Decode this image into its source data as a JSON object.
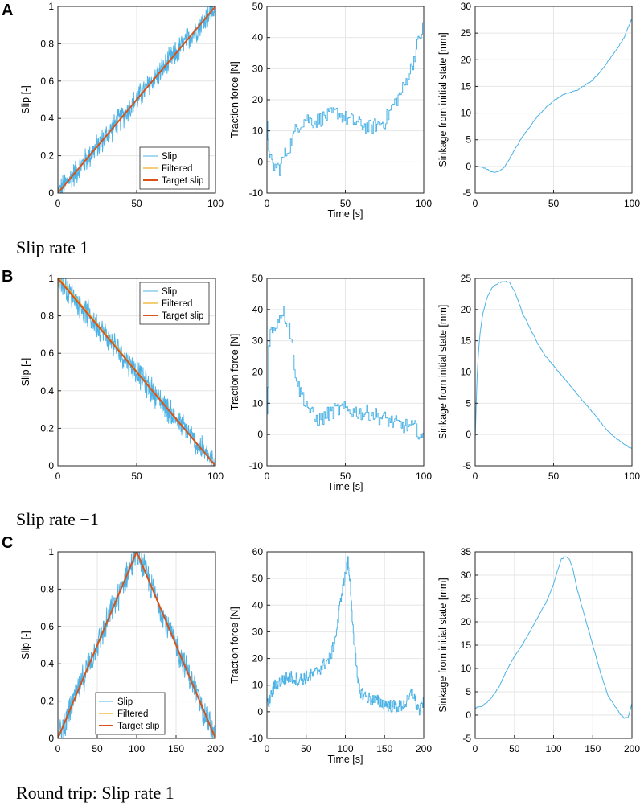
{
  "figure": {
    "rows": [
      {
        "label": "A",
        "caption": "Slip rate 1"
      },
      {
        "label": "B",
        "caption": "Slip rate −1"
      },
      {
        "label": "C",
        "caption": "Round trip: Slip rate 1"
      }
    ]
  },
  "colors": {
    "slip": "#4db3e6",
    "filtered": "#edb120",
    "target": "#d95319",
    "axis": "#262626",
    "grid": "#e6e6e6"
  },
  "legend": {
    "entries": [
      "Slip",
      "Filtered",
      "Target slip"
    ]
  },
  "chart_data": [
    {
      "type": "line",
      "row": "A",
      "title": "",
      "xlabel": "",
      "ylabel": "Slip [-]",
      "xlim": [
        0,
        100
      ],
      "ylim": [
        0,
        1
      ],
      "xticks": [
        0,
        50,
        100
      ],
      "yticks": [
        0,
        0.2,
        0.4,
        0.6,
        0.8,
        1
      ],
      "yticklabels": [
        "0",
        "0.2",
        "0.4",
        "0.6",
        "0.8",
        "1"
      ],
      "legend": "bottom-right",
      "series": [
        {
          "name": "Slip",
          "style": "noisy",
          "x": [
            0,
            100
          ],
          "values": [
            0,
            1
          ],
          "noise": 0.04
        },
        {
          "name": "Filtered",
          "x": [
            0,
            100
          ],
          "values": [
            0,
            1
          ]
        },
        {
          "name": "Target slip",
          "x": [
            0,
            100
          ],
          "values": [
            0,
            1
          ]
        }
      ]
    },
    {
      "type": "line",
      "row": "A",
      "title": "",
      "xlabel": "Time [s]",
      "ylabel": "Traction force [N]",
      "xlim": [
        0,
        100
      ],
      "ylim": [
        -10,
        50
      ],
      "xticks": [
        0,
        50,
        100
      ],
      "yticks": [
        -10,
        0,
        10,
        20,
        30,
        40,
        50
      ],
      "yticklabels": [
        "-10",
        "0",
        "10",
        "20",
        "30",
        "40",
        "50"
      ],
      "series": [
        {
          "name": "Traction force",
          "style": "steps",
          "x": [
            0,
            1,
            2,
            3,
            5,
            8,
            10,
            12,
            15,
            18,
            20,
            25,
            30,
            35,
            40,
            45,
            50,
            55,
            60,
            65,
            70,
            75,
            80,
            85,
            88,
            90,
            93,
            95,
            97,
            100
          ],
          "values": [
            11,
            5,
            1,
            -1,
            -1.5,
            -2,
            1,
            3,
            6,
            10,
            12,
            14,
            13,
            14,
            15,
            16,
            14,
            13,
            12,
            11,
            12,
            13,
            18,
            22,
            25,
            28,
            32,
            36,
            40,
            44
          ]
        }
      ]
    },
    {
      "type": "line",
      "row": "A",
      "title": "",
      "xlabel": "",
      "ylabel": "Sinkage from initial state [mm]",
      "xlim": [
        0,
        100
      ],
      "ylim": [
        -5,
        30
      ],
      "xticks": [
        0,
        50,
        100
      ],
      "yticks": [
        -5,
        0,
        5,
        10,
        15,
        20,
        25,
        30
      ],
      "yticklabels": [
        "-5",
        "0",
        "5",
        "10",
        "15",
        "20",
        "25",
        "30"
      ],
      "series": [
        {
          "name": "Sinkage",
          "style": "smooth",
          "x": [
            0,
            5,
            8,
            10,
            12,
            15,
            18,
            20,
            25,
            30,
            35,
            40,
            45,
            50,
            55,
            60,
            65,
            70,
            75,
            80,
            85,
            90,
            95,
            100
          ],
          "values": [
            0,
            -0.2,
            -0.6,
            -1,
            -1.1,
            -1,
            -0.3,
            0.5,
            3,
            5.5,
            7.5,
            9.5,
            11,
            12.3,
            13.3,
            13.8,
            14.3,
            15.2,
            16.2,
            17.8,
            19.8,
            21.8,
            24.2,
            27.8
          ]
        }
      ]
    },
    {
      "type": "line",
      "row": "B",
      "title": "",
      "xlabel": "",
      "ylabel": "Slip [-]",
      "xlim": [
        0,
        100
      ],
      "ylim": [
        0,
        1
      ],
      "xticks": [
        0,
        50,
        100
      ],
      "yticks": [
        0,
        0.2,
        0.4,
        0.6,
        0.8,
        1
      ],
      "yticklabels": [
        "0",
        "0.2",
        "0.4",
        "0.6",
        "0.8",
        "1"
      ],
      "legend": "top-right",
      "series": [
        {
          "name": "Slip",
          "style": "noisy",
          "x": [
            0,
            100
          ],
          "values": [
            1,
            0
          ],
          "noise": 0.04
        },
        {
          "name": "Filtered",
          "x": [
            0,
            0,
            1,
            100
          ],
          "values": [
            0.22,
            0.95,
            1,
            0
          ]
        },
        {
          "name": "Target slip",
          "x": [
            0,
            100
          ],
          "values": [
            1,
            0
          ]
        }
      ]
    },
    {
      "type": "line",
      "row": "B",
      "title": "",
      "xlabel": "Time [s]",
      "ylabel": "Traction force [N]",
      "xlim": [
        0,
        100
      ],
      "ylim": [
        -10,
        50
      ],
      "xticks": [
        0,
        50,
        100
      ],
      "yticks": [
        -10,
        0,
        10,
        20,
        30,
        40,
        50
      ],
      "yticklabels": [
        "-10",
        "0",
        "10",
        "20",
        "30",
        "40",
        "50"
      ],
      "series": [
        {
          "name": "Traction force",
          "style": "steps",
          "x": [
            0,
            1,
            2,
            4,
            6,
            8,
            10,
            12,
            14,
            16,
            18,
            20,
            22,
            25,
            28,
            30,
            35,
            40,
            45,
            50,
            55,
            60,
            65,
            70,
            75,
            80,
            85,
            90,
            95,
            98,
            100
          ],
          "values": [
            6,
            28,
            33,
            33,
            36,
            38,
            40,
            37,
            35,
            28,
            20,
            15,
            13,
            10,
            7,
            5,
            5,
            7,
            8,
            8,
            7.5,
            7,
            7,
            6,
            5,
            4,
            3,
            2.5,
            2,
            0,
            -3
          ]
        }
      ]
    },
    {
      "type": "line",
      "row": "B",
      "title": "",
      "xlabel": "",
      "ylabel": "Sinkage from initial state [mm]",
      "xlim": [
        0,
        100
      ],
      "ylim": [
        -5,
        25
      ],
      "xticks": [
        0,
        50,
        100
      ],
      "yticks": [
        -5,
        0,
        5,
        10,
        15,
        20,
        25
      ],
      "yticklabels": [
        "-5",
        "0",
        "5",
        "10",
        "15",
        "20",
        "25"
      ],
      "series": [
        {
          "name": "Sinkage",
          "style": "smooth",
          "x": [
            0,
            1,
            2,
            3,
            5,
            7,
            10,
            13,
            15,
            18,
            20,
            22,
            25,
            28,
            30,
            35,
            40,
            45,
            50,
            55,
            60,
            65,
            70,
            75,
            80,
            85,
            90,
            95,
            100
          ],
          "values": [
            -1,
            8,
            13,
            16,
            19.5,
            21.5,
            23.2,
            24,
            24.3,
            24.5,
            24.5,
            24.3,
            23,
            21,
            19.5,
            17,
            14.5,
            12.5,
            11,
            9.5,
            8,
            6.5,
            5,
            3.5,
            2,
            0.5,
            -0.7,
            -1.5,
            -2.3
          ]
        }
      ]
    },
    {
      "type": "line",
      "row": "C",
      "title": "",
      "xlabel": "",
      "ylabel": "Slip [-]",
      "xlim": [
        0,
        200
      ],
      "ylim": [
        0,
        1
      ],
      "xticks": [
        0,
        50,
        100,
        150,
        200
      ],
      "yticks": [
        0,
        0.2,
        0.4,
        0.6,
        0.8,
        1
      ],
      "yticklabels": [
        "0",
        "0.2",
        "0.4",
        "0.6",
        "0.8",
        "1"
      ],
      "legend": "bottom-center",
      "series": [
        {
          "name": "Slip",
          "style": "noisy",
          "x": [
            0,
            100,
            200
          ],
          "values": [
            0,
            1,
            0
          ],
          "noise": 0.045
        },
        {
          "name": "Filtered",
          "x": [
            0,
            100,
            200
          ],
          "values": [
            0,
            1,
            0
          ]
        },
        {
          "name": "Target slip",
          "x": [
            0,
            100,
            200
          ],
          "values": [
            0,
            1,
            0
          ]
        }
      ]
    },
    {
      "type": "line",
      "row": "C",
      "title": "",
      "xlabel": "Time [s]",
      "ylabel": "Traction force [N]",
      "xlim": [
        0,
        200
      ],
      "ylim": [
        -10,
        60
      ],
      "xticks": [
        0,
        50,
        100,
        150,
        200
      ],
      "yticks": [
        -10,
        0,
        10,
        20,
        30,
        40,
        50,
        60
      ],
      "yticklabels": [
        "-10",
        "0",
        "10",
        "20",
        "30",
        "40",
        "50",
        "60"
      ],
      "series": [
        {
          "name": "Traction force",
          "style": "steps",
          "x": [
            0,
            5,
            10,
            20,
            30,
            40,
            50,
            60,
            70,
            80,
            85,
            90,
            95,
            100,
            103,
            106,
            110,
            115,
            118,
            125,
            130,
            140,
            150,
            160,
            170,
            180,
            185,
            190,
            195,
            200
          ],
          "values": [
            2,
            6,
            10,
            12,
            13,
            12,
            13,
            14,
            17,
            20,
            25,
            33,
            45,
            52,
            56,
            48,
            30,
            12,
            8,
            6,
            5,
            4,
            3,
            2,
            2,
            4,
            8,
            3,
            0,
            5
          ]
        }
      ]
    },
    {
      "type": "line",
      "row": "C",
      "title": "",
      "xlabel": "",
      "ylabel": "Sinkage from initial state [mm]",
      "xlim": [
        0,
        200
      ],
      "ylim": [
        -5,
        35
      ],
      "xticks": [
        0,
        50,
        100,
        150,
        200
      ],
      "yticks": [
        -5,
        0,
        5,
        10,
        15,
        20,
        25,
        30,
        35
      ],
      "yticklabels": [
        "-5",
        "0",
        "5",
        "10",
        "15",
        "20",
        "25",
        "30",
        "35"
      ],
      "series": [
        {
          "name": "Sinkage",
          "style": "smooth",
          "x": [
            0,
            10,
            20,
            30,
            40,
            50,
            60,
            70,
            80,
            90,
            100,
            105,
            110,
            115,
            120,
            125,
            130,
            140,
            150,
            160,
            170,
            180,
            185,
            190,
            195,
            200
          ],
          "values": [
            1.5,
            2,
            3.5,
            6,
            9.5,
            12.5,
            15,
            18,
            21,
            24,
            28,
            31,
            33.5,
            34,
            33.5,
            31,
            27,
            21,
            15,
            9,
            4,
            1.5,
            0.2,
            -0.6,
            -0.6,
            2.5
          ]
        }
      ]
    }
  ]
}
